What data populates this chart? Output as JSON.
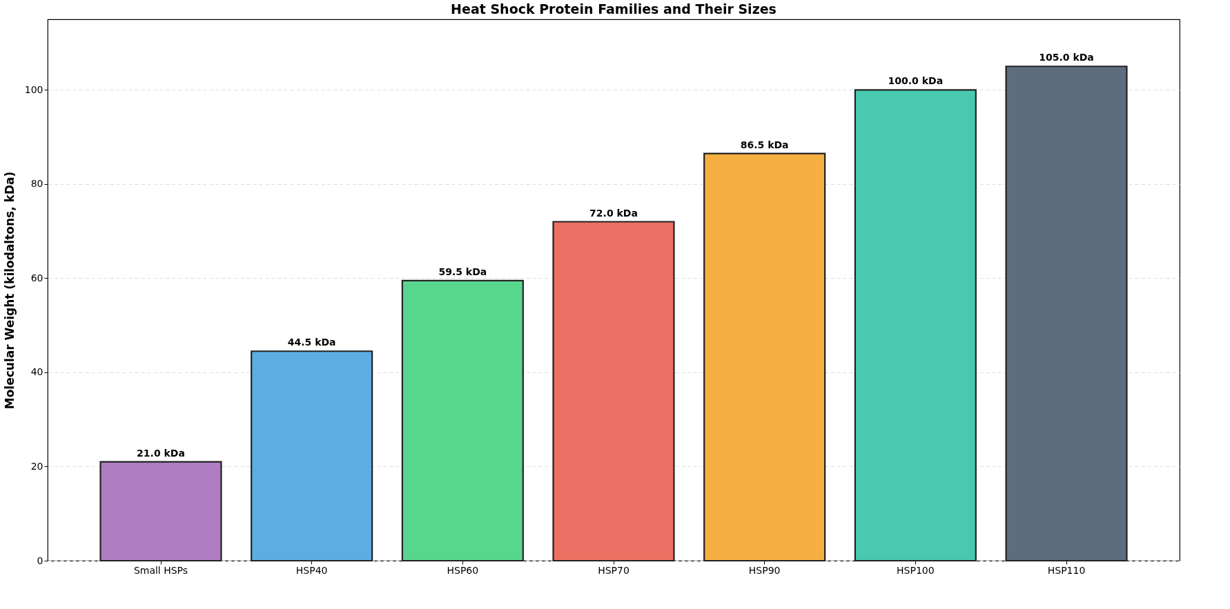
{
  "chart_data": {
    "type": "bar",
    "title": "Heat Shock Protein Families and Their Sizes",
    "ylabel": "Molecular Weight (kilodaltons, kDa)",
    "categories": [
      "Small HSPs",
      "HSP40",
      "HSP60",
      "HSP70",
      "HSP90",
      "HSP100",
      "HSP110"
    ],
    "values": [
      21.0,
      44.5,
      59.5,
      72.0,
      86.5,
      100.0,
      105.0
    ],
    "colors": [
      "#af7cc2",
      "#5dade2",
      "#58d68d",
      "#ec7063",
      "#f5b041",
      "#48c9b0",
      "#5d6d7e"
    ],
    "value_labels": [
      "21.0 kDa",
      "44.5 kDa",
      "59.5 kDa",
      "72.0 kDa",
      "86.5 kDa",
      "100.0 kDa",
      "105.0 kDa"
    ],
    "ylim": [
      0,
      115
    ],
    "yticks": [
      0,
      20,
      40,
      60,
      80,
      100
    ],
    "grid": "y"
  }
}
